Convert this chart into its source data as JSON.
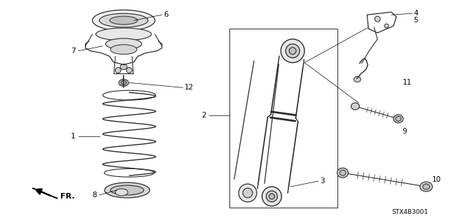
{
  "background_color": "#ffffff",
  "diagram_code": "STX4B3001",
  "line_color": "#2a2a2a",
  "label_color": "#000000"
}
